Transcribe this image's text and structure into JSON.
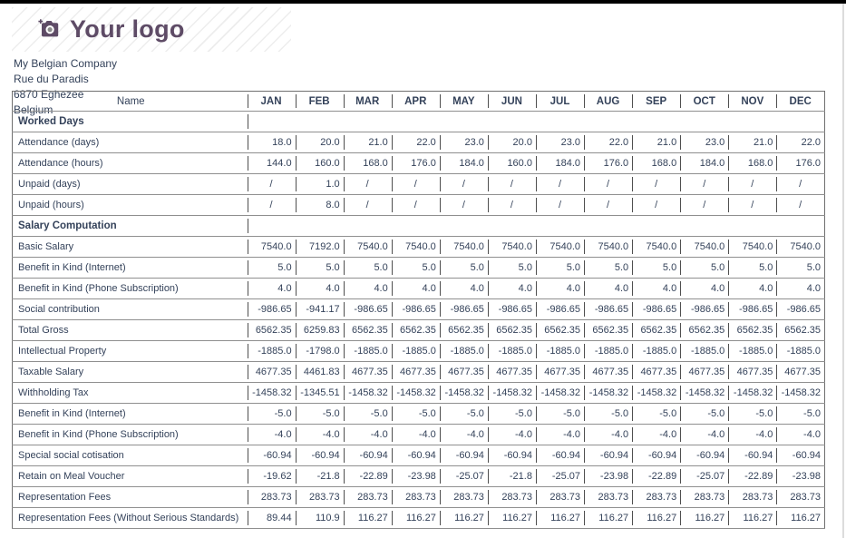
{
  "page": {
    "logo_text": "Your logo",
    "brand_color": "#5e4b66",
    "text_color": "#34425a"
  },
  "company": {
    "name": "My Belgian Company",
    "street": "Rue du Paradis",
    "city": "6870 Eghezee",
    "country": "Belgium"
  },
  "table": {
    "name_header": "Name",
    "months": [
      "JAN",
      "FEB",
      "MAR",
      "APR",
      "MAY",
      "JUN",
      "JUL",
      "AUG",
      "SEP",
      "OCT",
      "NOV",
      "DEC"
    ],
    "sections": [
      {
        "title": "Worked Days",
        "rows": [
          {
            "label": "Attendance (days)",
            "values": [
              "18.0",
              "20.0",
              "21.0",
              "22.0",
              "23.0",
              "20.0",
              "23.0",
              "22.0",
              "21.0",
              "23.0",
              "21.0",
              "22.0"
            ]
          },
          {
            "label": "Attendance (hours)",
            "values": [
              "144.0",
              "160.0",
              "168.0",
              "176.0",
              "184.0",
              "160.0",
              "184.0",
              "176.0",
              "168.0",
              "184.0",
              "168.0",
              "176.0"
            ]
          },
          {
            "label": "Unpaid (days)",
            "values": [
              "/",
              "1.0",
              "/",
              "/",
              "/",
              "/",
              "/",
              "/",
              "/",
              "/",
              "/",
              "/"
            ]
          },
          {
            "label": "Unpaid (hours)",
            "values": [
              "/",
              "8.0",
              "/",
              "/",
              "/",
              "/",
              "/",
              "/",
              "/",
              "/",
              "/",
              "/"
            ]
          }
        ]
      },
      {
        "title": "Salary Computation",
        "rows": [
          {
            "label": "Basic Salary",
            "values": [
              "7540.0",
              "7192.0",
              "7540.0",
              "7540.0",
              "7540.0",
              "7540.0",
              "7540.0",
              "7540.0",
              "7540.0",
              "7540.0",
              "7540.0",
              "7540.0"
            ]
          },
          {
            "label": "Benefit in Kind (Internet)",
            "values": [
              "5.0",
              "5.0",
              "5.0",
              "5.0",
              "5.0",
              "5.0",
              "5.0",
              "5.0",
              "5.0",
              "5.0",
              "5.0",
              "5.0"
            ]
          },
          {
            "label": "Benefit in Kind (Phone Subscription)",
            "values": [
              "4.0",
              "4.0",
              "4.0",
              "4.0",
              "4.0",
              "4.0",
              "4.0",
              "4.0",
              "4.0",
              "4.0",
              "4.0",
              "4.0"
            ]
          },
          {
            "label": "Social contribution",
            "values": [
              "-986.65",
              "-941.17",
              "-986.65",
              "-986.65",
              "-986.65",
              "-986.65",
              "-986.65",
              "-986.65",
              "-986.65",
              "-986.65",
              "-986.65",
              "-986.65"
            ]
          },
          {
            "label": "Total Gross",
            "values": [
              "6562.35",
              "6259.83",
              "6562.35",
              "6562.35",
              "6562.35",
              "6562.35",
              "6562.35",
              "6562.35",
              "6562.35",
              "6562.35",
              "6562.35",
              "6562.35"
            ]
          },
          {
            "label": "Intellectual Property",
            "values": [
              "-1885.0",
              "-1798.0",
              "-1885.0",
              "-1885.0",
              "-1885.0",
              "-1885.0",
              "-1885.0",
              "-1885.0",
              "-1885.0",
              "-1885.0",
              "-1885.0",
              "-1885.0"
            ]
          },
          {
            "label": "Taxable Salary",
            "values": [
              "4677.35",
              "4461.83",
              "4677.35",
              "4677.35",
              "4677.35",
              "4677.35",
              "4677.35",
              "4677.35",
              "4677.35",
              "4677.35",
              "4677.35",
              "4677.35"
            ]
          },
          {
            "label": "Withholding Tax",
            "values": [
              "-1458.32",
              "-1345.51",
              "-1458.32",
              "-1458.32",
              "-1458.32",
              "-1458.32",
              "-1458.32",
              "-1458.32",
              "-1458.32",
              "-1458.32",
              "-1458.32",
              "-1458.32"
            ]
          },
          {
            "label": "Benefit in Kind (Internet)",
            "values": [
              "-5.0",
              "-5.0",
              "-5.0",
              "-5.0",
              "-5.0",
              "-5.0",
              "-5.0",
              "-5.0",
              "-5.0",
              "-5.0",
              "-5.0",
              "-5.0"
            ]
          },
          {
            "label": "Benefit in Kind (Phone Subscription)",
            "values": [
              "-4.0",
              "-4.0",
              "-4.0",
              "-4.0",
              "-4.0",
              "-4.0",
              "-4.0",
              "-4.0",
              "-4.0",
              "-4.0",
              "-4.0",
              "-4.0"
            ]
          },
          {
            "label": "Special social cotisation",
            "values": [
              "-60.94",
              "-60.94",
              "-60.94",
              "-60.94",
              "-60.94",
              "-60.94",
              "-60.94",
              "-60.94",
              "-60.94",
              "-60.94",
              "-60.94",
              "-60.94"
            ]
          },
          {
            "label": "Retain on Meal Voucher",
            "values": [
              "-19.62",
              "-21.8",
              "-22.89",
              "-23.98",
              "-25.07",
              "-21.8",
              "-25.07",
              "-23.98",
              "-22.89",
              "-25.07",
              "-22.89",
              "-23.98"
            ]
          },
          {
            "label": "Representation Fees",
            "values": [
              "283.73",
              "283.73",
              "283.73",
              "283.73",
              "283.73",
              "283.73",
              "283.73",
              "283.73",
              "283.73",
              "283.73",
              "283.73",
              "283.73"
            ]
          },
          {
            "label": "Representation Fees (Without Serious Standards)",
            "values": [
              "89.44",
              "110.9",
              "116.27",
              "116.27",
              "116.27",
              "116.27",
              "116.27",
              "116.27",
              "116.27",
              "116.27",
              "116.27",
              "116.27"
            ]
          }
        ]
      }
    ]
  }
}
